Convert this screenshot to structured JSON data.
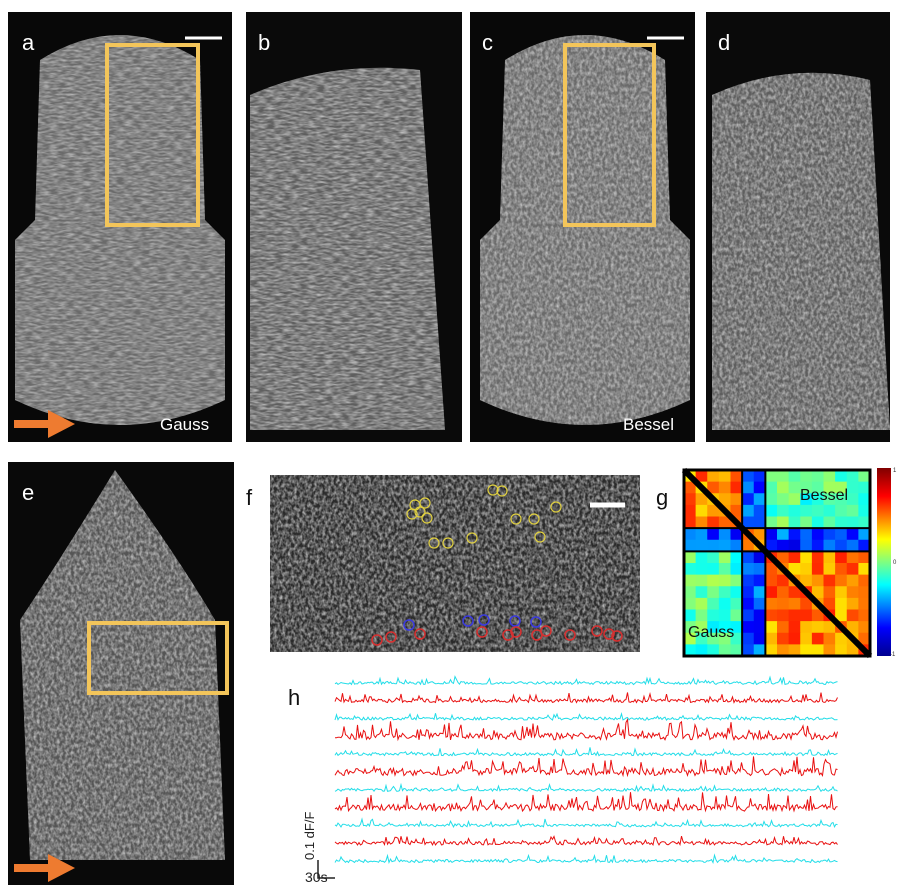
{
  "panels": {
    "labels": [
      "a",
      "b",
      "c",
      "d",
      "e",
      "f",
      "g",
      "h"
    ],
    "captions": {
      "a": "Gauss",
      "c": "Bessel"
    }
  },
  "correlation": {
    "upper": "Bessel",
    "lower": "Gauss",
    "colorbar": [
      "1",
      "0",
      "-1"
    ]
  },
  "traces": {
    "scale_y": "0.1 dF/F",
    "scale_x": "30s"
  }
}
